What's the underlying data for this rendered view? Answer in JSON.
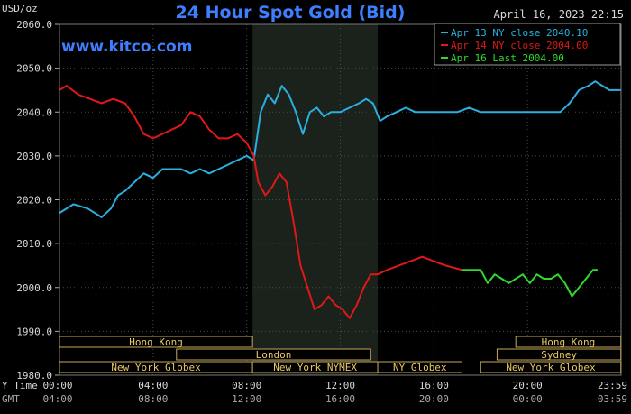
{
  "header": {
    "unit": "USD/oz",
    "title": "24 Hour Spot Gold (Bid)",
    "timestamp": "April 16, 2023 22:15",
    "watermark": "www.kitco.com"
  },
  "time_rows": {
    "ny_label": "Y Time",
    "gmt_label": "GMT",
    "ny_ticks": [
      "00:00",
      "04:00",
      "08:00",
      "12:00",
      "16:00",
      "20:00",
      "23:59"
    ],
    "gmt_ticks": [
      "04:00",
      "08:00",
      "12:00",
      "16:00",
      "20:00",
      "00:00",
      "03:59"
    ]
  },
  "markets": [
    {
      "label": "Hong Kong",
      "row": 0,
      "start": 0,
      "end": 8.25
    },
    {
      "label": "London",
      "row": 1,
      "start": 5.0,
      "end": 13.3
    },
    {
      "label": "New York Globex",
      "row": 2,
      "start": 0,
      "end": 8.25
    },
    {
      "label": "New York NYMEX",
      "row": 2,
      "start": 8.25,
      "end": 13.6
    },
    {
      "label": "NY Globex",
      "row": 2,
      "start": 13.6,
      "end": 17.2
    },
    {
      "label": "Hong Kong",
      "row": 0,
      "start": 19.5,
      "end": 23.99
    },
    {
      "label": "Sydney",
      "row": 1,
      "start": 18.7,
      "end": 23.99
    },
    {
      "label": "New York Globex",
      "row": 2,
      "start": 18.0,
      "end": 23.99
    }
  ],
  "chart_data": {
    "type": "line",
    "ylim": [
      1980,
      2060
    ],
    "yticks": [
      1980,
      1990,
      2000,
      2010,
      2020,
      2030,
      2040,
      2050,
      2060
    ],
    "ytick_labels": [
      "1980.0",
      "1990.0",
      "2000.0",
      "2010.0",
      "2020.0",
      "2030.0",
      "2040.0",
      "2050.0",
      "2060.0"
    ],
    "xlim": [
      0,
      24
    ],
    "shaded_region": [
      8.25,
      13.6
    ],
    "series": [
      {
        "name": "Apr 13 NY close 2040.10",
        "color": "#2ab0e0",
        "x": [
          0,
          0.6,
          1.2,
          1.8,
          2.2,
          2.5,
          2.8,
          3.2,
          3.6,
          4.0,
          4.4,
          4.8,
          5.2,
          5.6,
          6.0,
          6.4,
          6.8,
          7.2,
          7.6,
          8.0,
          8.3,
          8.6,
          8.9,
          9.2,
          9.5,
          9.8,
          10.1,
          10.4,
          10.7,
          11.0,
          11.3,
          11.6,
          12.0,
          12.4,
          12.8,
          13.1,
          13.4,
          13.7,
          14.0,
          14.4,
          14.8,
          15.2,
          15.6,
          16.0,
          16.5,
          17.0,
          17.5,
          18.0,
          18.5,
          19.0,
          19.5,
          20.0,
          20.5,
          21.0,
          21.4,
          21.8,
          22.2,
          22.6,
          22.9,
          23.2,
          23.5,
          23.99
        ],
        "y": [
          2017,
          2019,
          2018,
          2016,
          2018,
          2021,
          2022,
          2024,
          2026,
          2025,
          2027,
          2027,
          2027,
          2026,
          2027,
          2026,
          2027,
          2028,
          2029,
          2030,
          2029,
          2040,
          2044,
          2042,
          2046,
          2044,
          2040,
          2035,
          2040,
          2041,
          2039,
          2040,
          2040,
          2041,
          2042,
          2043,
          2042,
          2038,
          2039,
          2040,
          2041,
          2040,
          2040,
          2040,
          2040,
          2040,
          2041,
          2040,
          2040,
          2040,
          2040,
          2040,
          2040,
          2040,
          2040,
          2042,
          2045,
          2046,
          2047,
          2046,
          2045,
          2045
        ]
      },
      {
        "name": "Apr 14 NY close 2004.00",
        "color": "#e01818",
        "x": [
          0,
          0.3,
          0.8,
          1.3,
          1.8,
          2.3,
          2.8,
          3.2,
          3.6,
          4.0,
          4.4,
          4.8,
          5.2,
          5.6,
          6.0,
          6.4,
          6.8,
          7.2,
          7.6,
          8.0,
          8.3,
          8.5,
          8.8,
          9.1,
          9.4,
          9.7,
          10.0,
          10.3,
          10.6,
          10.9,
          11.2,
          11.5,
          11.8,
          12.1,
          12.4,
          12.7,
          13.0,
          13.3,
          13.6,
          14.0,
          14.5,
          15.0,
          15.5,
          16.0,
          16.5,
          17.2
        ],
        "y": [
          2045,
          2046,
          2044,
          2043,
          2042,
          2043,
          2042,
          2039,
          2035,
          2034,
          2035,
          2036,
          2037,
          2040,
          2039,
          2036,
          2034,
          2034,
          2035,
          2033,
          2030,
          2024,
          2021,
          2023,
          2026,
          2024,
          2015,
          2005,
          2000,
          1995,
          1996,
          1998,
          1996,
          1995,
          1993,
          1996,
          2000,
          2003,
          2003,
          2004,
          2005,
          2006,
          2007,
          2006,
          2005,
          2004
        ]
      },
      {
        "name": "Apr 16 Last 2004.00",
        "color": "#30d830",
        "x": [
          17.2,
          17.6,
          18.0,
          18.3,
          18.6,
          18.9,
          19.2,
          19.5,
          19.8,
          20.1,
          20.4,
          20.7,
          21.0,
          21.3,
          21.6,
          21.9,
          22.2,
          22.5,
          22.8,
          23.0
        ],
        "y": [
          2004,
          2004,
          2004,
          2001,
          2003,
          2002,
          2001,
          2002,
          2003,
          2001,
          2003,
          2002,
          2002,
          2003,
          2001,
          1998,
          2000,
          2002,
          2004,
          2004
        ]
      }
    ]
  }
}
